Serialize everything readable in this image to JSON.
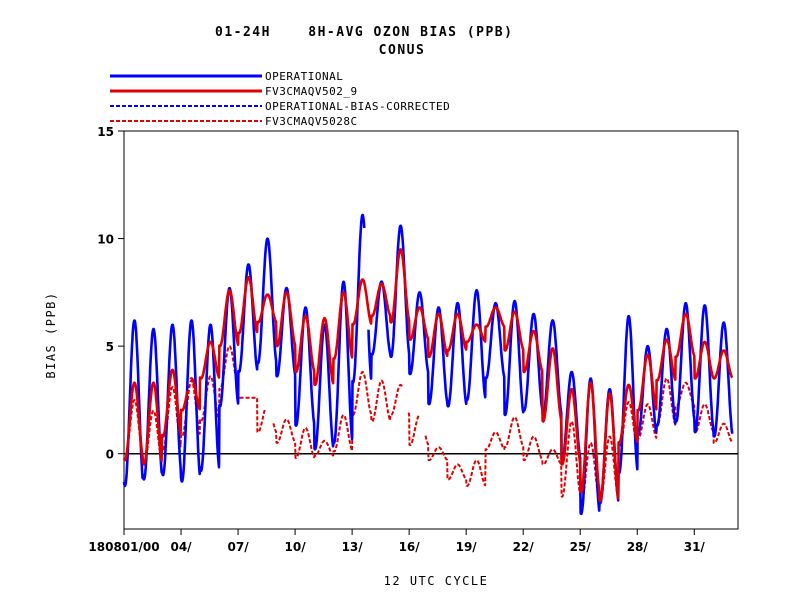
{
  "chart_data": {
    "type": "line",
    "title": "01-24H    8H-AVG OZON BIAS (PPB)",
    "subtitle": "CONUS",
    "xlabel": "12 UTC CYCLE",
    "ylabel": "BIAS (PPB)",
    "xlim": [
      0,
      32.3
    ],
    "ylim": [
      -3.5,
      15
    ],
    "yticks": [
      {
        "value": 0,
        "label": "0"
      },
      {
        "value": 5,
        "label": "5"
      },
      {
        "value": 10,
        "label": "10"
      },
      {
        "value": 15,
        "label": "15"
      }
    ],
    "xticks": [
      {
        "value": 0,
        "label": "180801/00"
      },
      {
        "value": 3,
        "label": "04/"
      },
      {
        "value": 6,
        "label": "07/"
      },
      {
        "value": 9,
        "label": "10/"
      },
      {
        "value": 12,
        "label": "13/"
      },
      {
        "value": 15,
        "label": "16/"
      },
      {
        "value": 18,
        "label": "19/"
      },
      {
        "value": 21,
        "label": "22/"
      },
      {
        "value": 24,
        "label": "25/"
      },
      {
        "value": 27,
        "label": "28/"
      },
      {
        "value": 30,
        "label": "31/"
      }
    ],
    "zero_line": true,
    "grid": false,
    "legend_position": "top-left",
    "series": [
      {
        "name": "OPERATIONAL",
        "color": "#0000ff",
        "dash": "solid",
        "daily": [
          [
            -1.5,
            6.2
          ],
          [
            -1.2,
            5.8
          ],
          [
            -1.0,
            6.0
          ],
          [
            -1.3,
            6.2
          ],
          [
            -0.8,
            6.0
          ],
          [
            2.2,
            7.7
          ],
          [
            3.8,
            8.8
          ],
          [
            4.2,
            10.0
          ],
          [
            3.6,
            7.7
          ],
          [
            1.3,
            6.8
          ],
          [
            0.2,
            6.0
          ],
          [
            0.5,
            8.0
          ],
          [
            3.3,
            11.1
          ],
          [
            4.6,
            8.0
          ],
          [
            4.5,
            10.6
          ],
          [
            3.7,
            7.5
          ],
          [
            2.3,
            6.8
          ],
          [
            2.2,
            7.0
          ],
          [
            2.5,
            7.6
          ],
          [
            3.5,
            7.0
          ],
          [
            1.8,
            7.1
          ],
          [
            2.0,
            6.5
          ],
          [
            1.8,
            6.2
          ],
          [
            -0.3,
            3.8
          ],
          [
            -2.8,
            3.5
          ],
          [
            -2.3,
            3.0
          ],
          [
            -0.9,
            6.4
          ],
          [
            0.9,
            5.0
          ],
          [
            1.3,
            5.8
          ],
          [
            1.5,
            7.0
          ],
          [
            1.0,
            6.9
          ],
          [
            0.8,
            6.1
          ]
        ],
        "gaps": [
          [
            12.65,
            12.85
          ]
        ]
      },
      {
        "name": "FV3CMAQV502_9",
        "color": "#e00000",
        "dash": "solid",
        "daily": [
          [
            -0.3,
            3.3
          ],
          [
            -0.5,
            3.3
          ],
          [
            0.8,
            3.9
          ],
          [
            2.0,
            3.5
          ],
          [
            3.5,
            5.2
          ],
          [
            5.0,
            7.6
          ],
          [
            5.6,
            8.2
          ],
          [
            6.1,
            7.4
          ],
          [
            5.0,
            7.5
          ],
          [
            3.8,
            6.4
          ],
          [
            3.2,
            6.3
          ],
          [
            4.4,
            7.5
          ],
          [
            6.0,
            8.1
          ],
          [
            6.4,
            7.9
          ],
          [
            6.1,
            9.5
          ],
          [
            5.3,
            6.8
          ],
          [
            4.5,
            6.5
          ],
          [
            4.8,
            6.5
          ],
          [
            5.2,
            6.0
          ],
          [
            5.9,
            6.8
          ],
          [
            4.8,
            6.6
          ],
          [
            3.8,
            5.7
          ],
          [
            1.5,
            4.9
          ],
          [
            -0.5,
            3.0
          ],
          [
            -1.8,
            3.3
          ],
          [
            -2.2,
            2.8
          ],
          [
            0.5,
            3.2
          ],
          [
            2.0,
            4.6
          ],
          [
            3.4,
            5.3
          ],
          [
            4.5,
            6.5
          ],
          [
            3.5,
            5.2
          ],
          [
            3.5,
            4.8
          ]
        ],
        "gaps": [
          [
            3.35,
            3.5
          ]
        ]
      },
      {
        "name": "OPERATIONAL-BIAS-CORRECTED",
        "color": "#0000ff",
        "dash": "dashed",
        "daily": []
      },
      {
        "name": "FV3CMAQV5028C",
        "color": "#e00000",
        "dash": "dashed",
        "daily": [
          [
            -0.3,
            2.5
          ],
          [
            -0.5,
            2.0
          ],
          [
            0.2,
            3.1
          ],
          [
            0.8,
            3.4
          ],
          [
            1.5,
            3.6
          ],
          [
            3.0,
            5.0
          ],
          [
            2.6,
            2.6
          ],
          [
            1.0,
            2.3
          ],
          [
            0.5,
            1.6
          ],
          [
            -0.2,
            1.2
          ],
          [
            -0.1,
            0.6
          ],
          [
            0.1,
            1.8
          ],
          [
            1.8,
            3.8
          ],
          [
            1.5,
            3.4
          ],
          [
            1.8,
            3.2
          ],
          [
            0.4,
            1.8
          ],
          [
            -0.3,
            0.3
          ],
          [
            -1.2,
            -0.5
          ],
          [
            -1.5,
            -0.3
          ],
          [
            0.2,
            1.0
          ],
          [
            0.3,
            1.7
          ],
          [
            -0.3,
            0.8
          ],
          [
            -0.5,
            0.2
          ],
          [
            -2.0,
            1.5
          ],
          [
            -2.3,
            0.5
          ],
          [
            -2.2,
            0.8
          ],
          [
            0.3,
            2.4
          ],
          [
            0.7,
            2.3
          ],
          [
            1.3,
            3.5
          ],
          [
            2.2,
            3.3
          ],
          [
            1.0,
            2.3
          ],
          [
            0.5,
            1.4
          ]
        ],
        "gaps": [
          [
            7.4,
            7.85
          ],
          [
            14.65,
            14.95
          ],
          [
            15.55,
            15.85
          ]
        ]
      }
    ]
  }
}
